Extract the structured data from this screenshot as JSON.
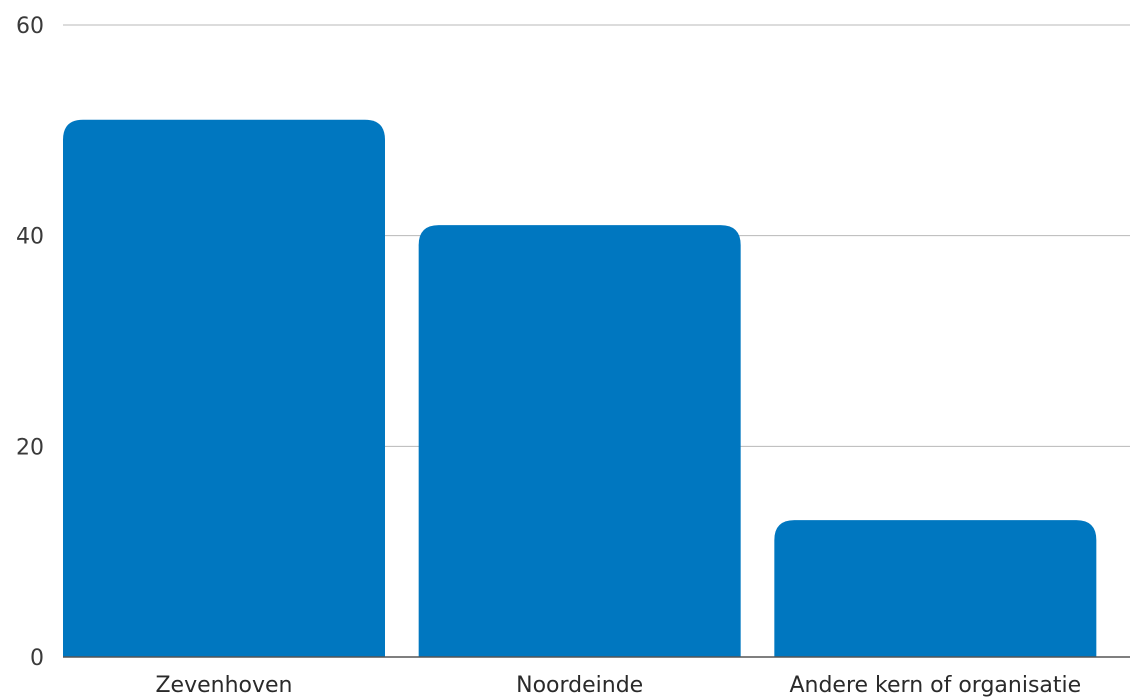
{
  "chart_data": {
    "type": "bar",
    "categories": [
      "Zevenhoven",
      "Noordeinde",
      "Andere kern of organisatie"
    ],
    "values": [
      51,
      41,
      13
    ],
    "ylim": [
      0,
      60
    ],
    "yticks": [
      "0",
      "20",
      "40",
      "60"
    ],
    "grid": true,
    "bar_color": "#0077c0"
  }
}
